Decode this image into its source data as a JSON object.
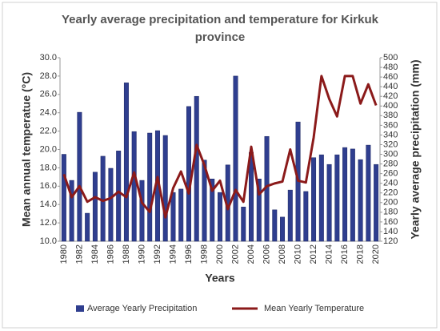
{
  "chart_data": {
    "type": "bar",
    "title": "Yearly average precipitation and temperature for Kirkuk province",
    "x_label": "Years",
    "y_label": "Mean annual temperatue (°C)",
    "y2_label": "Yearly average precipitation  (mm)",
    "categories": [
      "1980",
      null,
      "1982",
      null,
      "1984",
      null,
      "1986",
      null,
      "1988",
      null,
      "1990",
      null,
      "1992",
      null,
      "1994",
      null,
      "1996",
      null,
      "1998",
      null,
      "2000",
      null,
      "2002",
      null,
      "2004",
      null,
      "2006",
      null,
      "2008",
      null,
      "2010",
      null,
      "2012",
      null,
      "2014",
      null,
      "2016",
      null,
      "2018",
      null,
      "2020"
    ],
    "series": [
      {
        "name": "Average Yearly  Precipitation",
        "type": "bar",
        "axis": "y2",
        "color": "#2f3e8f",
        "values": [
          300,
          246,
          387,
          178,
          263,
          296,
          271,
          307,
          448,
          347,
          246,
          344,
          349,
          339,
          221,
          228,
          399,
          420,
          288,
          249,
          221,
          278,
          462,
          191,
          304,
          249,
          337,
          185,
          170,
          226,
          367,
          223,
          293,
          299,
          279,
          299,
          314,
          311,
          289,
          319,
          279
        ]
      },
      {
        "name": "Mean Yearly Temperature",
        "type": "line",
        "axis": "y",
        "color": "#8b1a1a",
        "values": [
          17.3,
          14.8,
          16.0,
          14.3,
          14.8,
          14.4,
          14.7,
          15.4,
          14.8,
          17.5,
          14.2,
          13.2,
          17.0,
          12.6,
          15.8,
          17.6,
          15.2,
          20.5,
          18.3,
          15.5,
          16.6,
          13.5,
          15.6,
          14.3,
          20.3,
          15.1,
          16.0,
          16.3,
          16.5,
          20.0,
          16.6,
          16.4,
          21.3,
          28.0,
          25.5,
          23.6,
          28.0,
          28.0,
          25.0,
          27.1,
          24.8
        ]
      }
    ],
    "ylim": [
      10,
      30
    ],
    "yticks": [
      {
        "value": 10,
        "label": "10.0"
      },
      {
        "value": 12,
        "label": "12.0"
      },
      {
        "value": 14,
        "label": "14.0"
      },
      {
        "value": 16,
        "label": "16.0"
      },
      {
        "value": 18,
        "label": "18.0"
      },
      {
        "value": 20,
        "label": "20.0"
      },
      {
        "value": 22,
        "label": "22.0"
      },
      {
        "value": 24,
        "label": "24.0"
      },
      {
        "value": 26,
        "label": "26.0"
      },
      {
        "value": 28,
        "label": "28.0"
      },
      {
        "value": 30,
        "label": "30.0"
      }
    ],
    "y2lim": [
      120,
      500
    ],
    "y2ticks": [
      120,
      140,
      160,
      180,
      200,
      220,
      240,
      260,
      280,
      300,
      320,
      340,
      360,
      380,
      400,
      420,
      440,
      460,
      480,
      500
    ],
    "grid": false,
    "legend": "bottom"
  }
}
